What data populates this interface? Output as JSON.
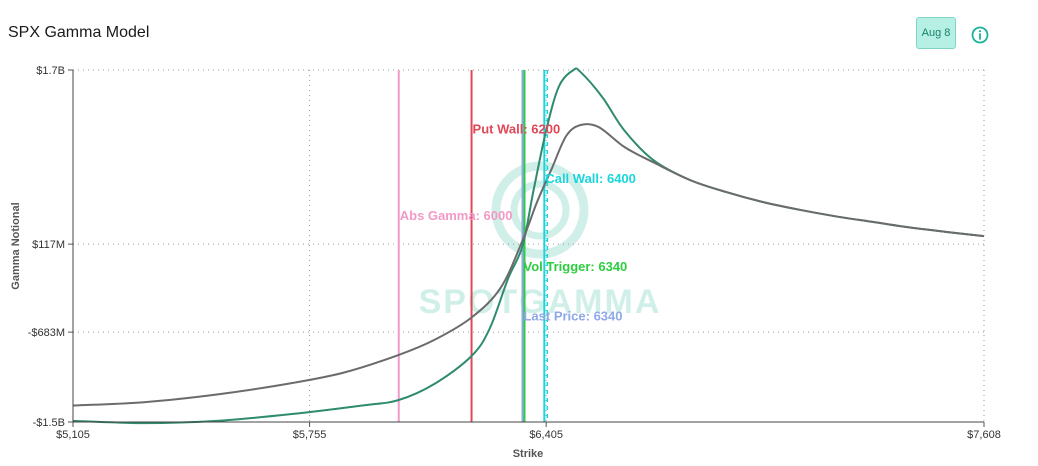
{
  "header": {
    "title": "SPX Gamma Model",
    "date_badge": "Aug 8",
    "info_icon": "info-circle-icon"
  },
  "watermark": {
    "text": "SPOTGAMMA"
  },
  "chart_data": {
    "type": "line",
    "xlabel": "Strike",
    "ylabel": "Gamma Notional",
    "xlim": [
      5105,
      7608
    ],
    "ylim": [
      -1.5,
      1.7
    ],
    "x_ticks": [
      {
        "value": 5105,
        "label": "$5,105"
      },
      {
        "value": 5755,
        "label": "$5,755"
      },
      {
        "value": 6405,
        "label": "$6,405"
      },
      {
        "value": 7608,
        "label": "$7,608"
      }
    ],
    "y_ticks": [
      {
        "value": 1.7,
        "label": "$1.7B"
      },
      {
        "value": 0.117,
        "label": "$117M"
      },
      {
        "value": -0.683,
        "label": "-$683M"
      },
      {
        "value": -1.5,
        "label": "-$1.5B"
      }
    ],
    "grid": true,
    "series": [
      {
        "color": "#2e8b6e",
        "points": [
          [
            5105,
            -1.49
          ],
          [
            5300,
            -1.51
          ],
          [
            5500,
            -1.49
          ],
          [
            5700,
            -1.43
          ],
          [
            5900,
            -1.35
          ],
          [
            6000,
            -1.3
          ],
          [
            6100,
            -1.15
          ],
          [
            6200,
            -0.9
          ],
          [
            6250,
            -0.65
          ],
          [
            6300,
            -0.2
          ],
          [
            6340,
            0.1
          ],
          [
            6370,
            0.6
          ],
          [
            6405,
            1.15
          ],
          [
            6440,
            1.55
          ],
          [
            6480,
            1.7
          ],
          [
            6500,
            1.68
          ],
          [
            6560,
            1.45
          ],
          [
            6620,
            1.15
          ],
          [
            6700,
            0.88
          ],
          [
            6800,
            0.7
          ],
          [
            6900,
            0.59
          ],
          [
            7000,
            0.5
          ],
          [
            7100,
            0.43
          ],
          [
            7200,
            0.37
          ],
          [
            7300,
            0.32
          ],
          [
            7400,
            0.27
          ],
          [
            7500,
            0.23
          ],
          [
            7608,
            0.19
          ]
        ]
      },
      {
        "color": "#6b6b6b",
        "points": [
          [
            5105,
            -1.35
          ],
          [
            5300,
            -1.32
          ],
          [
            5500,
            -1.25
          ],
          [
            5700,
            -1.15
          ],
          [
            5850,
            -1.05
          ],
          [
            6000,
            -0.89
          ],
          [
            6100,
            -0.75
          ],
          [
            6200,
            -0.55
          ],
          [
            6280,
            -0.28
          ],
          [
            6340,
            0.15
          ],
          [
            6380,
            0.5
          ],
          [
            6420,
            0.8
          ],
          [
            6460,
            1.1
          ],
          [
            6500,
            1.2
          ],
          [
            6550,
            1.18
          ],
          [
            6620,
            1.0
          ],
          [
            6700,
            0.86
          ],
          [
            6800,
            0.7
          ],
          [
            6900,
            0.59
          ],
          [
            7000,
            0.5
          ],
          [
            7100,
            0.43
          ],
          [
            7200,
            0.37
          ],
          [
            7300,
            0.32
          ],
          [
            7400,
            0.27
          ],
          [
            7500,
            0.23
          ],
          [
            7608,
            0.19
          ]
        ]
      }
    ],
    "reference_lines": [
      {
        "x": 6000,
        "label": "Abs Gamma: 6000",
        "color": "#f29ac6",
        "label_y": 0.38
      },
      {
        "x": 6200,
        "label": "Put Wall: 6200",
        "color": "#e04858",
        "label_y": 1.17
      },
      {
        "x": 6340,
        "label": "Vol Trigger: 6340",
        "color": "#2ecc40",
        "label_y": -0.08
      },
      {
        "x": 6340,
        "label": "Last Price: 6340",
        "color": "#8fa8e8",
        "label_y": -0.53
      },
      {
        "x": 6400,
        "label": "Call Wall: 6400",
        "color": "#1ad6dc",
        "label_y": 0.72
      }
    ]
  }
}
